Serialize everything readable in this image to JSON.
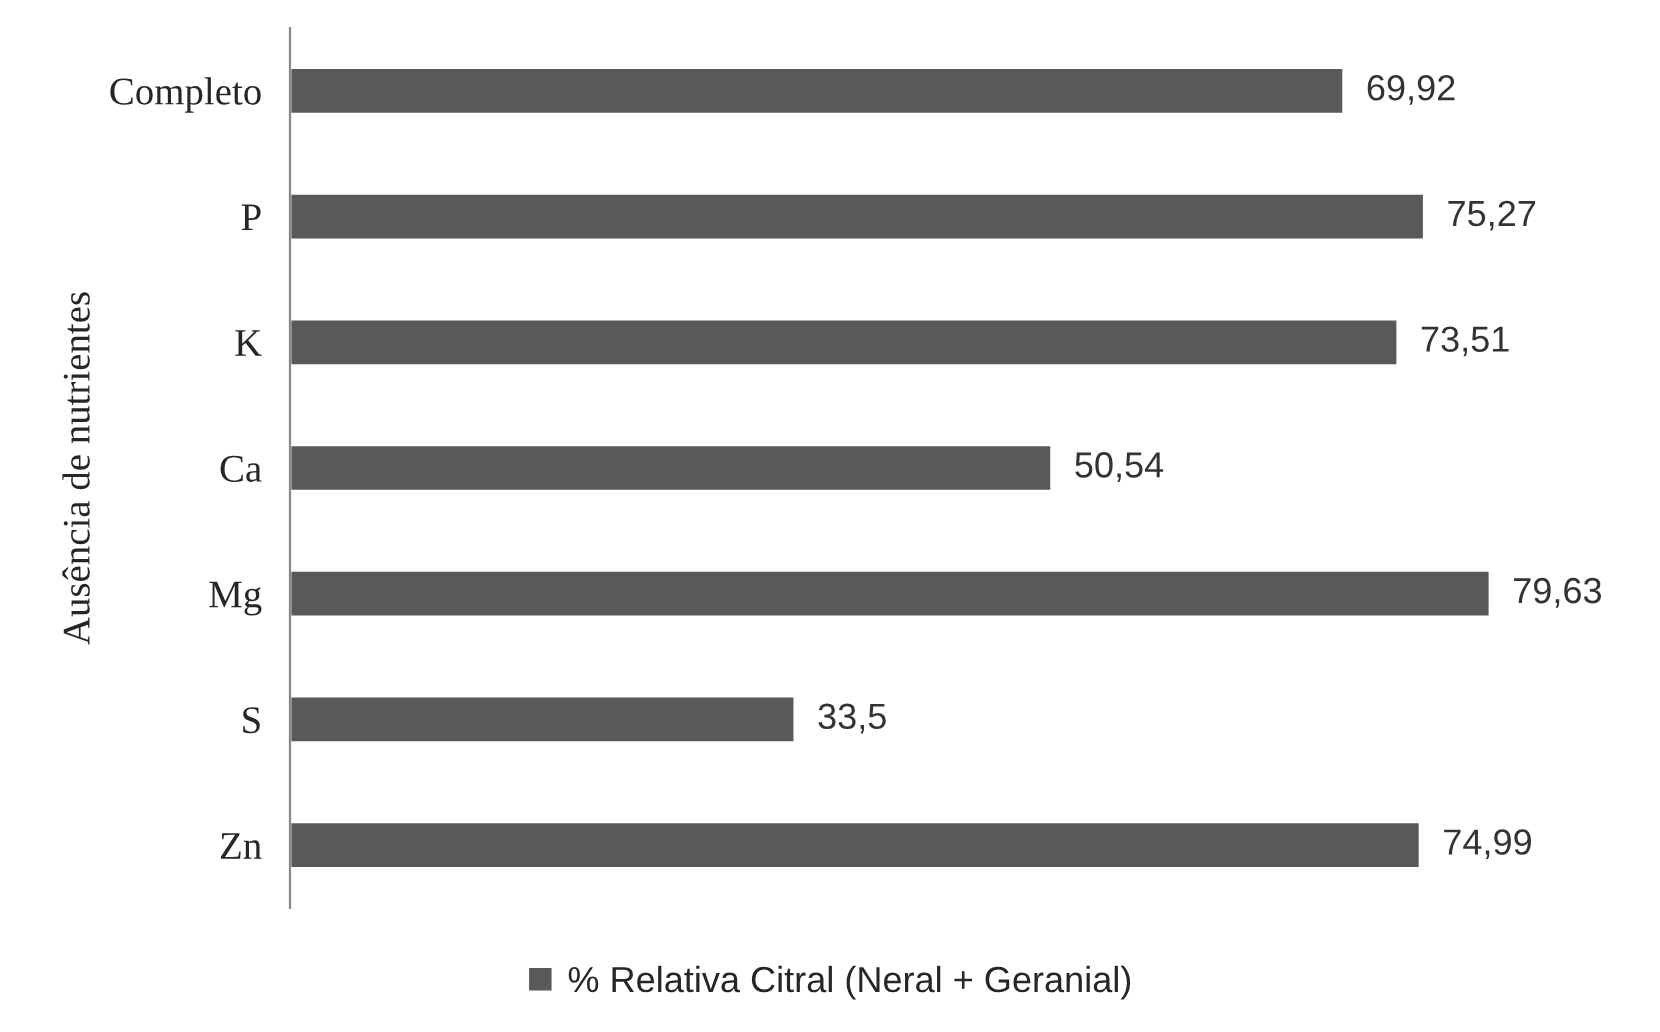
{
  "chart_data": {
    "type": "bar",
    "orientation": "horizontal",
    "ylabel": "Ausência de nutrientes",
    "categories": [
      "Completo",
      "P",
      "K",
      "Ca",
      "Mg",
      "S",
      "Zn"
    ],
    "series": [
      {
        "name": "% Relativa Citral (Neral + Geranial)",
        "color": "#595959",
        "values": [
          69.92,
          75.27,
          73.51,
          50.54,
          79.63,
          33.5,
          74.99
        ],
        "value_labels": [
          "69,92",
          "75,27",
          "73,51",
          "50,54",
          "79,63",
          "33,5",
          "74,99"
        ]
      }
    ],
    "legend": "bottom",
    "grid": false
  }
}
